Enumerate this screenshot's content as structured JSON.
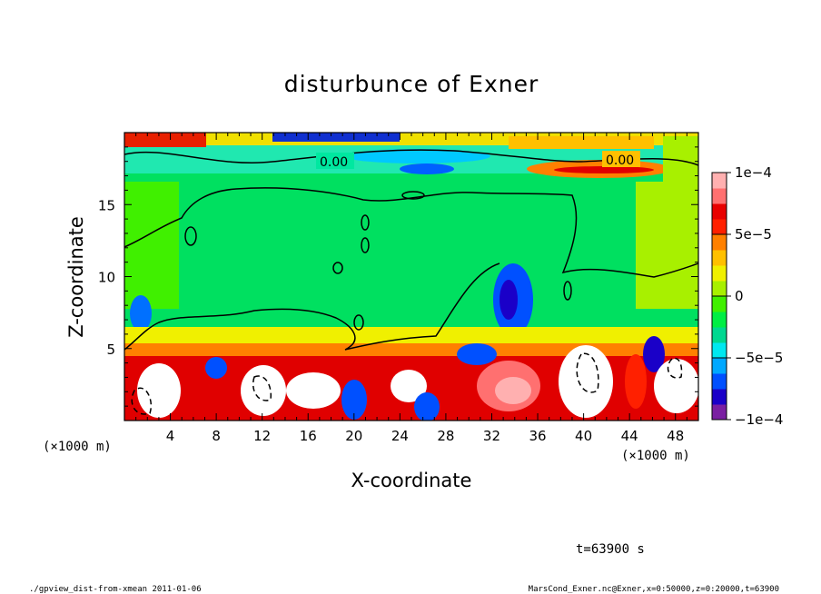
{
  "chart_data": {
    "type": "heatmap",
    "title": "disturbunce of Exner",
    "xlabel": "X-coordinate",
    "ylabel": "Z-coordinate",
    "x_unit": "(×1000 m)",
    "y_unit": "(×1000 m)",
    "xlim": [
      0,
      50
    ],
    "ylim": [
      0,
      20
    ],
    "x_ticks": [
      4,
      8,
      12,
      16,
      20,
      24,
      28,
      32,
      36,
      40,
      44,
      48
    ],
    "y_ticks": [
      5,
      10,
      15
    ],
    "colorbar": {
      "range": [
        -0.0001,
        0.0001
      ],
      "tick_labels": [
        "1e−4",
        "5e−5",
        "0",
        "−5e−5",
        "−1e−4"
      ],
      "tick_values": [
        0.0001,
        5e-05,
        0,
        -5e-05,
        -0.0001
      ],
      "colors": [
        "#7a1fa2",
        "#1a00c8",
        "#0050ff",
        "#00a8ff",
        "#00e8f0",
        "#00d890",
        "#00ee44",
        "#40f000",
        "#a8f000",
        "#f0f000",
        "#ffc000",
        "#ff8000",
        "#ff2000",
        "#e80000",
        "#ff7070",
        "#ffb0b0"
      ]
    },
    "contour_labels": [
      "0.00",
      "0.00"
    ],
    "time_label": "t=63900 s"
  },
  "footer": {
    "left": "./gpview_dist-from-xmean  2011-01-06",
    "right": "MarsCond_Exner.nc@Exner,x=0:50000,z=0:20000,t=63900"
  }
}
